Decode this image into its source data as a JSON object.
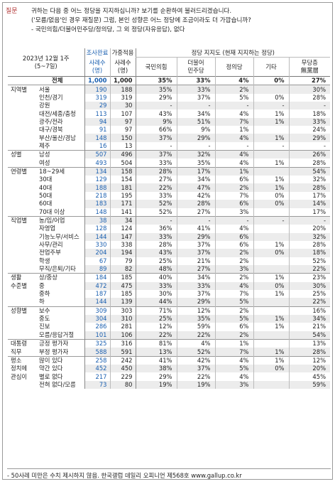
{
  "question": {
    "label": "질문",
    "lines": [
      "귀하는 다음 중 어느 정당을 지지하십니까? 보기를 순환하여 불러드리겠습니다.",
      "('모름/없음'인 경우 재질문) 그럼, 본인 성향은 어느 정당에 조금이라도 더 가깝습니까?",
      "- 국민의힘/더불어민주당/정의당, 그 외 정당(자유응답), 없다"
    ]
  },
  "header": {
    "period_line1": "2023년 12월 1주",
    "period_line2": "(5~7일)",
    "col_n1_top": "조사완료",
    "col_n1_bottom": "사례수\n(명)",
    "col_n2_top": "가중적용",
    "col_n2_bottom": "사례수\n(명)",
    "support_title": "정당 지지도 (현재 지지하는 정당)",
    "parties": [
      "국민의힘",
      "더불어\n민주당",
      "정의당",
      "기타",
      "무당층\n無黨層"
    ]
  },
  "rows": [
    {
      "group": "",
      "sub": "전체",
      "n1": "1,000",
      "n2": "1,000",
      "v": [
        "35%",
        "33%",
        "4%",
        "0%",
        "27%"
      ],
      "sec": false,
      "total": true
    },
    {
      "group": "지역별",
      "sub": "서울",
      "n1": "190",
      "n2": "188",
      "v": [
        "35%",
        "33%",
        "2%",
        "",
        ""
      ],
      "last": "30%",
      "sec": true
    },
    {
      "group": "",
      "sub": "인천/경기",
      "n1": "319",
      "n2": "319",
      "v": [
        "29%",
        "37%",
        "5%",
        "0%",
        "28%"
      ]
    },
    {
      "group": "",
      "sub": "강원",
      "n1": "29",
      "n2": "30",
      "v": [
        "-",
        "-",
        "-",
        "-",
        "-"
      ]
    },
    {
      "group": "",
      "sub": "대전/세종/충청",
      "n1": "113",
      "n2": "107",
      "v": [
        "43%",
        "34%",
        "4%",
        "1%",
        "18%"
      ]
    },
    {
      "group": "",
      "sub": "광주/전라",
      "n1": "94",
      "n2": "97",
      "v": [
        "9%",
        "51%",
        "7%",
        "1%",
        "33%"
      ]
    },
    {
      "group": "",
      "sub": "대구/경북",
      "n1": "91",
      "n2": "97",
      "v": [
        "66%",
        "9%",
        "1%",
        "",
        "24%"
      ]
    },
    {
      "group": "",
      "sub": "부산/울산/경남",
      "n1": "148",
      "n2": "150",
      "v": [
        "37%",
        "29%",
        "4%",
        "1%",
        "29%"
      ]
    },
    {
      "group": "",
      "sub": "제주",
      "n1": "16",
      "n2": "13",
      "v": [
        "-",
        "-",
        "-",
        "-",
        "-"
      ]
    },
    {
      "group": "성별",
      "sub": "남성",
      "n1": "507",
      "n2": "496",
      "v": [
        "37%",
        "32%",
        "4%",
        "",
        "26%"
      ],
      "sec": true
    },
    {
      "group": "",
      "sub": "여성",
      "n1": "493",
      "n2": "504",
      "v": [
        "33%",
        "35%",
        "4%",
        "1%",
        "28%"
      ]
    },
    {
      "group": "연령별",
      "sub": "18~29세",
      "n1": "134",
      "n2": "158",
      "v": [
        "28%",
        "17%",
        "1%",
        "",
        "54%"
      ],
      "sec": true
    },
    {
      "group": "",
      "sub": "30대",
      "n1": "129",
      "n2": "154",
      "v": [
        "27%",
        "34%",
        "6%",
        "1%",
        "32%"
      ]
    },
    {
      "group": "",
      "sub": "40대",
      "n1": "188",
      "n2": "181",
      "v": [
        "22%",
        "47%",
        "2%",
        "1%",
        "28%"
      ]
    },
    {
      "group": "",
      "sub": "50대",
      "n1": "218",
      "n2": "195",
      "v": [
        "33%",
        "42%",
        "7%",
        "0%",
        "17%"
      ]
    },
    {
      "group": "",
      "sub": "60대",
      "n1": "183",
      "n2": "171",
      "v": [
        "52%",
        "28%",
        "6%",
        "0%",
        "14%"
      ]
    },
    {
      "group": "",
      "sub": "70대 이상",
      "n1": "148",
      "n2": "141",
      "v": [
        "52%",
        "27%",
        "3%",
        "",
        "17%"
      ]
    },
    {
      "group": "직업별",
      "sub": "농/임/어업",
      "n1": "38",
      "n2": "34",
      "v": [
        "-",
        "-",
        "-",
        "-",
        "-"
      ],
      "sec": true
    },
    {
      "group": "",
      "sub": "자영업",
      "n1": "128",
      "n2": "124",
      "v": [
        "36%",
        "41%",
        "4%",
        "",
        "20%"
      ]
    },
    {
      "group": "",
      "sub": "기능노무/서비스",
      "n1": "144",
      "n2": "147",
      "v": [
        "33%",
        "29%",
        "6%",
        "",
        "32%"
      ]
    },
    {
      "group": "",
      "sub": "사무/관리",
      "n1": "330",
      "n2": "338",
      "v": [
        "28%",
        "37%",
        "6%",
        "1%",
        "28%"
      ]
    },
    {
      "group": "",
      "sub": "전업주부",
      "n1": "204",
      "n2": "194",
      "v": [
        "43%",
        "37%",
        "2%",
        "0%",
        "18%"
      ]
    },
    {
      "group": "",
      "sub": "학생",
      "n1": "67",
      "n2": "79",
      "v": [
        "25%",
        "21%",
        "2%",
        "",
        "52%"
      ]
    },
    {
      "group": "",
      "sub": "무직/은퇴/기타",
      "n1": "89",
      "n2": "82",
      "v": [
        "48%",
        "27%",
        "3%",
        "",
        "22%"
      ]
    },
    {
      "group": "생활",
      "sub": "상/중상",
      "n1": "184",
      "n2": "185",
      "v": [
        "40%",
        "34%",
        "2%",
        "1%",
        "23%"
      ],
      "sec": true
    },
    {
      "group": "수준별",
      "sub": "중",
      "n1": "472",
      "n2": "475",
      "v": [
        "33%",
        "33%",
        "4%",
        "0%",
        "30%"
      ]
    },
    {
      "group": "",
      "sub": "중하",
      "n1": "187",
      "n2": "185",
      "v": [
        "30%",
        "37%",
        "7%",
        "1%",
        "25%"
      ]
    },
    {
      "group": "",
      "sub": "하",
      "n1": "144",
      "n2": "139",
      "v": [
        "44%",
        "29%",
        "5%",
        "",
        "22%"
      ]
    },
    {
      "group": "성향별",
      "sub": "보수",
      "n1": "309",
      "n2": "303",
      "v": [
        "71%",
        "12%",
        "2%",
        "",
        "16%"
      ],
      "sec": true
    },
    {
      "group": "",
      "sub": "중도",
      "n1": "304",
      "n2": "310",
      "v": [
        "25%",
        "35%",
        "5%",
        "1%",
        "34%"
      ]
    },
    {
      "group": "",
      "sub": "진보",
      "n1": "286",
      "n2": "281",
      "v": [
        "12%",
        "59%",
        "6%",
        "1%",
        "21%"
      ]
    },
    {
      "group": "",
      "sub": "모름/응답거절",
      "n1": "101",
      "n2": "106",
      "v": [
        "22%",
        "22%",
        "2%",
        "",
        "54%"
      ]
    },
    {
      "group": "대통령",
      "sub": "긍정 평가자",
      "n1": "325",
      "n2": "316",
      "v": [
        "81%",
        "4%",
        "1%",
        "",
        "13%"
      ],
      "sec": true
    },
    {
      "group": "직무",
      "sub": "부정 평가자",
      "n1": "588",
      "n2": "591",
      "v": [
        "13%",
        "52%",
        "7%",
        "1%",
        "28%"
      ]
    },
    {
      "group": "평소",
      "sub": "많이 있다",
      "n1": "258",
      "n2": "242",
      "v": [
        "41%",
        "42%",
        "4%",
        "1%",
        "12%"
      ],
      "sec": true
    },
    {
      "group": "정치에",
      "sub": "약간 있다",
      "n1": "452",
      "n2": "450",
      "v": [
        "38%",
        "37%",
        "5%",
        "0%",
        "20%"
      ]
    },
    {
      "group": "관심이",
      "sub": "별로 없다",
      "n1": "217",
      "n2": "229",
      "v": [
        "29%",
        "22%",
        "4%",
        "",
        "45%"
      ]
    },
    {
      "group": "",
      "sub": "전혀 없다/모름",
      "n1": "73",
      "n2": "80",
      "v": [
        "19%",
        "19%",
        "3%",
        "",
        "59%"
      ]
    }
  ],
  "footer": "- 50사례 미만은 수치 제시하지 않음. 한국갤럽 데일리 오피니언 제568호 www.gallup.co.kr",
  "colors": {
    "blue": "#1a5fb0",
    "red": "#b03030",
    "shade": "#ececec"
  }
}
